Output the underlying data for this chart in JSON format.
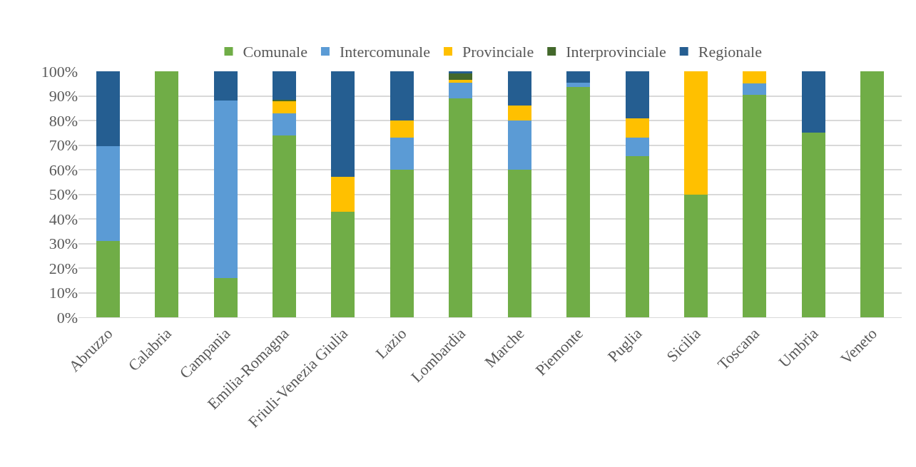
{
  "chart_data": {
    "type": "bar",
    "stacked": true,
    "categories": [
      "Abruzzo",
      "Calabria",
      "Campania",
      "Emilia-Romagna",
      "Friuli-Venezia Giulia",
      "Lazio",
      "Lombardia",
      "Marche",
      "Piemonte",
      "Puglia",
      "Sicilia",
      "Toscana",
      "Umbria",
      "Veneto"
    ],
    "series": [
      {
        "name": "Comunale",
        "color": "#70ad47",
        "values": [
          31,
          100,
          16,
          74,
          43,
          60,
          89,
          60,
          93.5,
          65.5,
          50,
          90.5,
          75,
          100
        ]
      },
      {
        "name": "Intercomunale",
        "color": "#5b9bd5",
        "values": [
          38.5,
          0,
          72,
          9,
          0,
          13,
          6.5,
          20,
          2,
          7.5,
          0,
          4.5,
          0,
          0
        ]
      },
      {
        "name": "Provinciale",
        "color": "#ffc000",
        "values": [
          0,
          0,
          0,
          5,
          14,
          7,
          1,
          6,
          0,
          8,
          50,
          5,
          0,
          0
        ]
      },
      {
        "name": "Interprovinciale",
        "color": "#43682b",
        "values": [
          0,
          0,
          0,
          0.5,
          0,
          0,
          2.5,
          0,
          0,
          0,
          0,
          0,
          0,
          0
        ]
      },
      {
        "name": "Regionale",
        "color": "#255e91",
        "values": [
          30.5,
          0,
          12,
          11.5,
          43,
          20,
          1,
          14,
          4.5,
          19,
          0,
          0,
          25,
          0
        ]
      }
    ],
    "ylim": [
      0,
      100
    ],
    "yticks": [
      {
        "value": 0,
        "label": "0%"
      },
      {
        "value": 10,
        "label": "10%"
      },
      {
        "value": 20,
        "label": "20%"
      },
      {
        "value": 30,
        "label": "30%"
      },
      {
        "value": 40,
        "label": "40%"
      },
      {
        "value": 50,
        "label": "50%"
      },
      {
        "value": 60,
        "label": "60%"
      },
      {
        "value": 70,
        "label": "70%"
      },
      {
        "value": 80,
        "label": "80%"
      },
      {
        "value": 90,
        "label": "90%"
      },
      {
        "value": 100,
        "label": "100%"
      }
    ],
    "grid": "y",
    "legend": "top"
  }
}
